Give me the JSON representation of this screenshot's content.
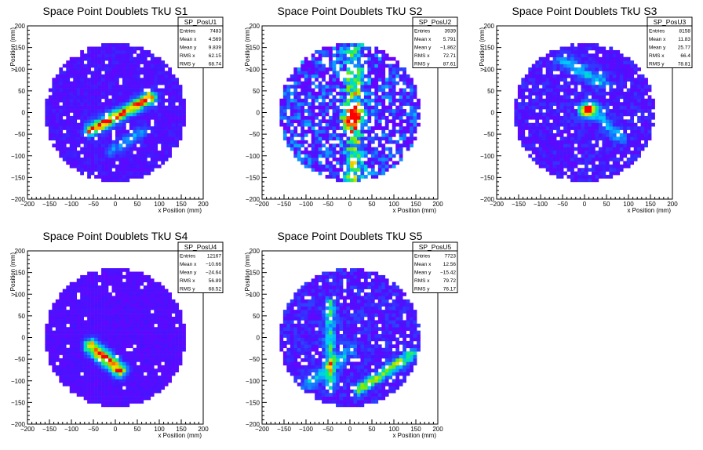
{
  "chart_data": [
    {
      "type": "heatmap",
      "title": "Space Point Doublets TkU S1",
      "xlabel": "x Position (mm)",
      "ylabel": "y Position (mm)",
      "xlim": [
        -200,
        200
      ],
      "ylim": [
        -200,
        200
      ],
      "xticks": [
        -200,
        -150,
        -100,
        -50,
        0,
        50,
        100,
        150,
        200
      ],
      "yticks": [
        -200,
        -150,
        -100,
        -50,
        0,
        50,
        100,
        150,
        200
      ],
      "stats": {
        "name": "SP_PosU1",
        "rows": [
          {
            "label": "Entries",
            "value": "7483"
          },
          {
            "label": "Mean x",
            "value": "4.569"
          },
          {
            "label": "Mean y",
            "value": "9.839"
          },
          {
            "label": "RMS x",
            "value": "62.15"
          },
          {
            "label": "RMS y",
            "value": "68.74"
          }
        ]
      },
      "radius": 160,
      "features": [
        {
          "kind": "line",
          "x1": -55,
          "y1": -40,
          "x2": 80,
          "y2": 35,
          "width": 10,
          "peak": 0.88
        },
        {
          "kind": "line",
          "x1": -10,
          "y1": -90,
          "x2": 60,
          "y2": -45,
          "width": 9,
          "peak": 0.3
        }
      ],
      "base": 0.12,
      "noise": 0.07,
      "holes": 0.05,
      "seed": 11
    },
    {
      "type": "heatmap",
      "title": "Space Point Doublets TkU S2",
      "xlabel": "x Position (mm)",
      "ylabel": "y Position (mm)",
      "xlim": [
        -200,
        200
      ],
      "ylim": [
        -200,
        200
      ],
      "xticks": [
        -200,
        -150,
        -100,
        -50,
        0,
        50,
        100,
        150,
        200
      ],
      "yticks": [
        -200,
        -150,
        -100,
        -50,
        0,
        50,
        100,
        150,
        200
      ],
      "stats": {
        "name": "SP_PosU2",
        "rows": [
          {
            "label": "Entries",
            "value": "3939"
          },
          {
            "label": "Mean x",
            "value": "5.791"
          },
          {
            "label": "Mean y",
            "value": "-1.862"
          },
          {
            "label": "RMS x",
            "value": "72.71"
          },
          {
            "label": "RMS y",
            "value": "87.61"
          }
        ]
      },
      "radius": 160,
      "features": [
        {
          "kind": "line",
          "x1": 10,
          "y1": -150,
          "x2": 10,
          "y2": 140,
          "width": 14,
          "peak": 0.45
        },
        {
          "kind": "spot",
          "x": 5,
          "y": -10,
          "width": 16,
          "peak": 0.8
        }
      ],
      "base": 0.2,
      "noise": 0.25,
      "holes": 0.2,
      "seed": 23
    },
    {
      "type": "heatmap",
      "title": "Space Point Doublets TkU S3",
      "xlabel": "x Position (mm)",
      "ylabel": "y Position (mm)",
      "xlim": [
        -200,
        200
      ],
      "ylim": [
        -200,
        200
      ],
      "xticks": [
        -200,
        -150,
        -100,
        -50,
        0,
        50,
        100,
        150,
        200
      ],
      "yticks": [
        -200,
        -150,
        -100,
        -50,
        0,
        50,
        100,
        150,
        200
      ],
      "stats": {
        "name": "SP_PosU3",
        "rows": [
          {
            "label": "Entries",
            "value": "8158"
          },
          {
            "label": "Mean x",
            "value": "11.83"
          },
          {
            "label": "Mean y",
            "value": "25.77"
          },
          {
            "label": "RMS x",
            "value": "66.4"
          },
          {
            "label": "RMS y",
            "value": "78.81"
          }
        ]
      },
      "radius": 160,
      "features": [
        {
          "kind": "spot",
          "x": 5,
          "y": 5,
          "width": 12,
          "peak": 0.9
        },
        {
          "kind": "line",
          "x1": 20,
          "y1": 10,
          "x2": 80,
          "y2": -60,
          "width": 10,
          "peak": 0.3
        },
        {
          "kind": "line",
          "x1": -50,
          "y1": 120,
          "x2": 40,
          "y2": 70,
          "width": 12,
          "peak": 0.3
        }
      ],
      "base": 0.14,
      "noise": 0.1,
      "holes": 0.07,
      "seed": 37
    },
    {
      "type": "heatmap",
      "title": "Space Point Doublets TkU S4",
      "xlabel": "x Position (mm)",
      "ylabel": "y Position (mm)",
      "xlim": [
        -200,
        200
      ],
      "ylim": [
        -200,
        200
      ],
      "xticks": [
        -200,
        -150,
        -100,
        -50,
        0,
        50,
        100,
        150,
        200
      ],
      "yticks": [
        -200,
        -150,
        -100,
        -50,
        0,
        50,
        100,
        150,
        200
      ],
      "stats": {
        "name": "SP_PosU4",
        "rows": [
          {
            "label": "Entries",
            "value": "12167"
          },
          {
            "label": "Mean x",
            "value": "-10.66"
          },
          {
            "label": "Mean y",
            "value": "-24.64"
          },
          {
            "label": "RMS x",
            "value": "56.89"
          },
          {
            "label": "RMS y",
            "value": "68.52"
          }
        ]
      },
      "radius": 160,
      "features": [
        {
          "kind": "line",
          "x1": -55,
          "y1": -20,
          "x2": 10,
          "y2": -75,
          "width": 12,
          "peak": 0.85
        }
      ],
      "base": 0.1,
      "noise": 0.05,
      "holes": 0.03,
      "seed": 41
    },
    {
      "type": "heatmap",
      "title": "Space Point Doublets TkU S5",
      "xlabel": "x Position (mm)",
      "ylabel": "y Position (mm)",
      "xlim": [
        -200,
        200
      ],
      "ylim": [
        -200,
        200
      ],
      "xticks": [
        -200,
        -150,
        -100,
        -50,
        0,
        50,
        100,
        150,
        200
      ],
      "yticks": [
        -200,
        -150,
        -100,
        -50,
        0,
        50,
        100,
        150,
        200
      ],
      "stats": {
        "name": "SP_PosU5",
        "rows": [
          {
            "label": "Entries",
            "value": "7723"
          },
          {
            "label": "Mean x",
            "value": "12.56"
          },
          {
            "label": "Mean y",
            "value": "-15.42"
          },
          {
            "label": "RMS x",
            "value": "79.72"
          },
          {
            "label": "RMS y",
            "value": "76.17"
          }
        ]
      },
      "radius": 160,
      "features": [
        {
          "kind": "line",
          "x1": 20,
          "y1": -120,
          "x2": 140,
          "y2": -40,
          "width": 9,
          "peak": 0.55
        },
        {
          "kind": "line",
          "x1": -45,
          "y1": 80,
          "x2": -45,
          "y2": -110,
          "width": 9,
          "peak": 0.4
        },
        {
          "kind": "line",
          "x1": -100,
          "y1": -110,
          "x2": 0,
          "y2": -30,
          "width": 10,
          "peak": 0.3
        }
      ],
      "base": 0.15,
      "noise": 0.12,
      "holes": 0.08,
      "seed": 53
    }
  ]
}
